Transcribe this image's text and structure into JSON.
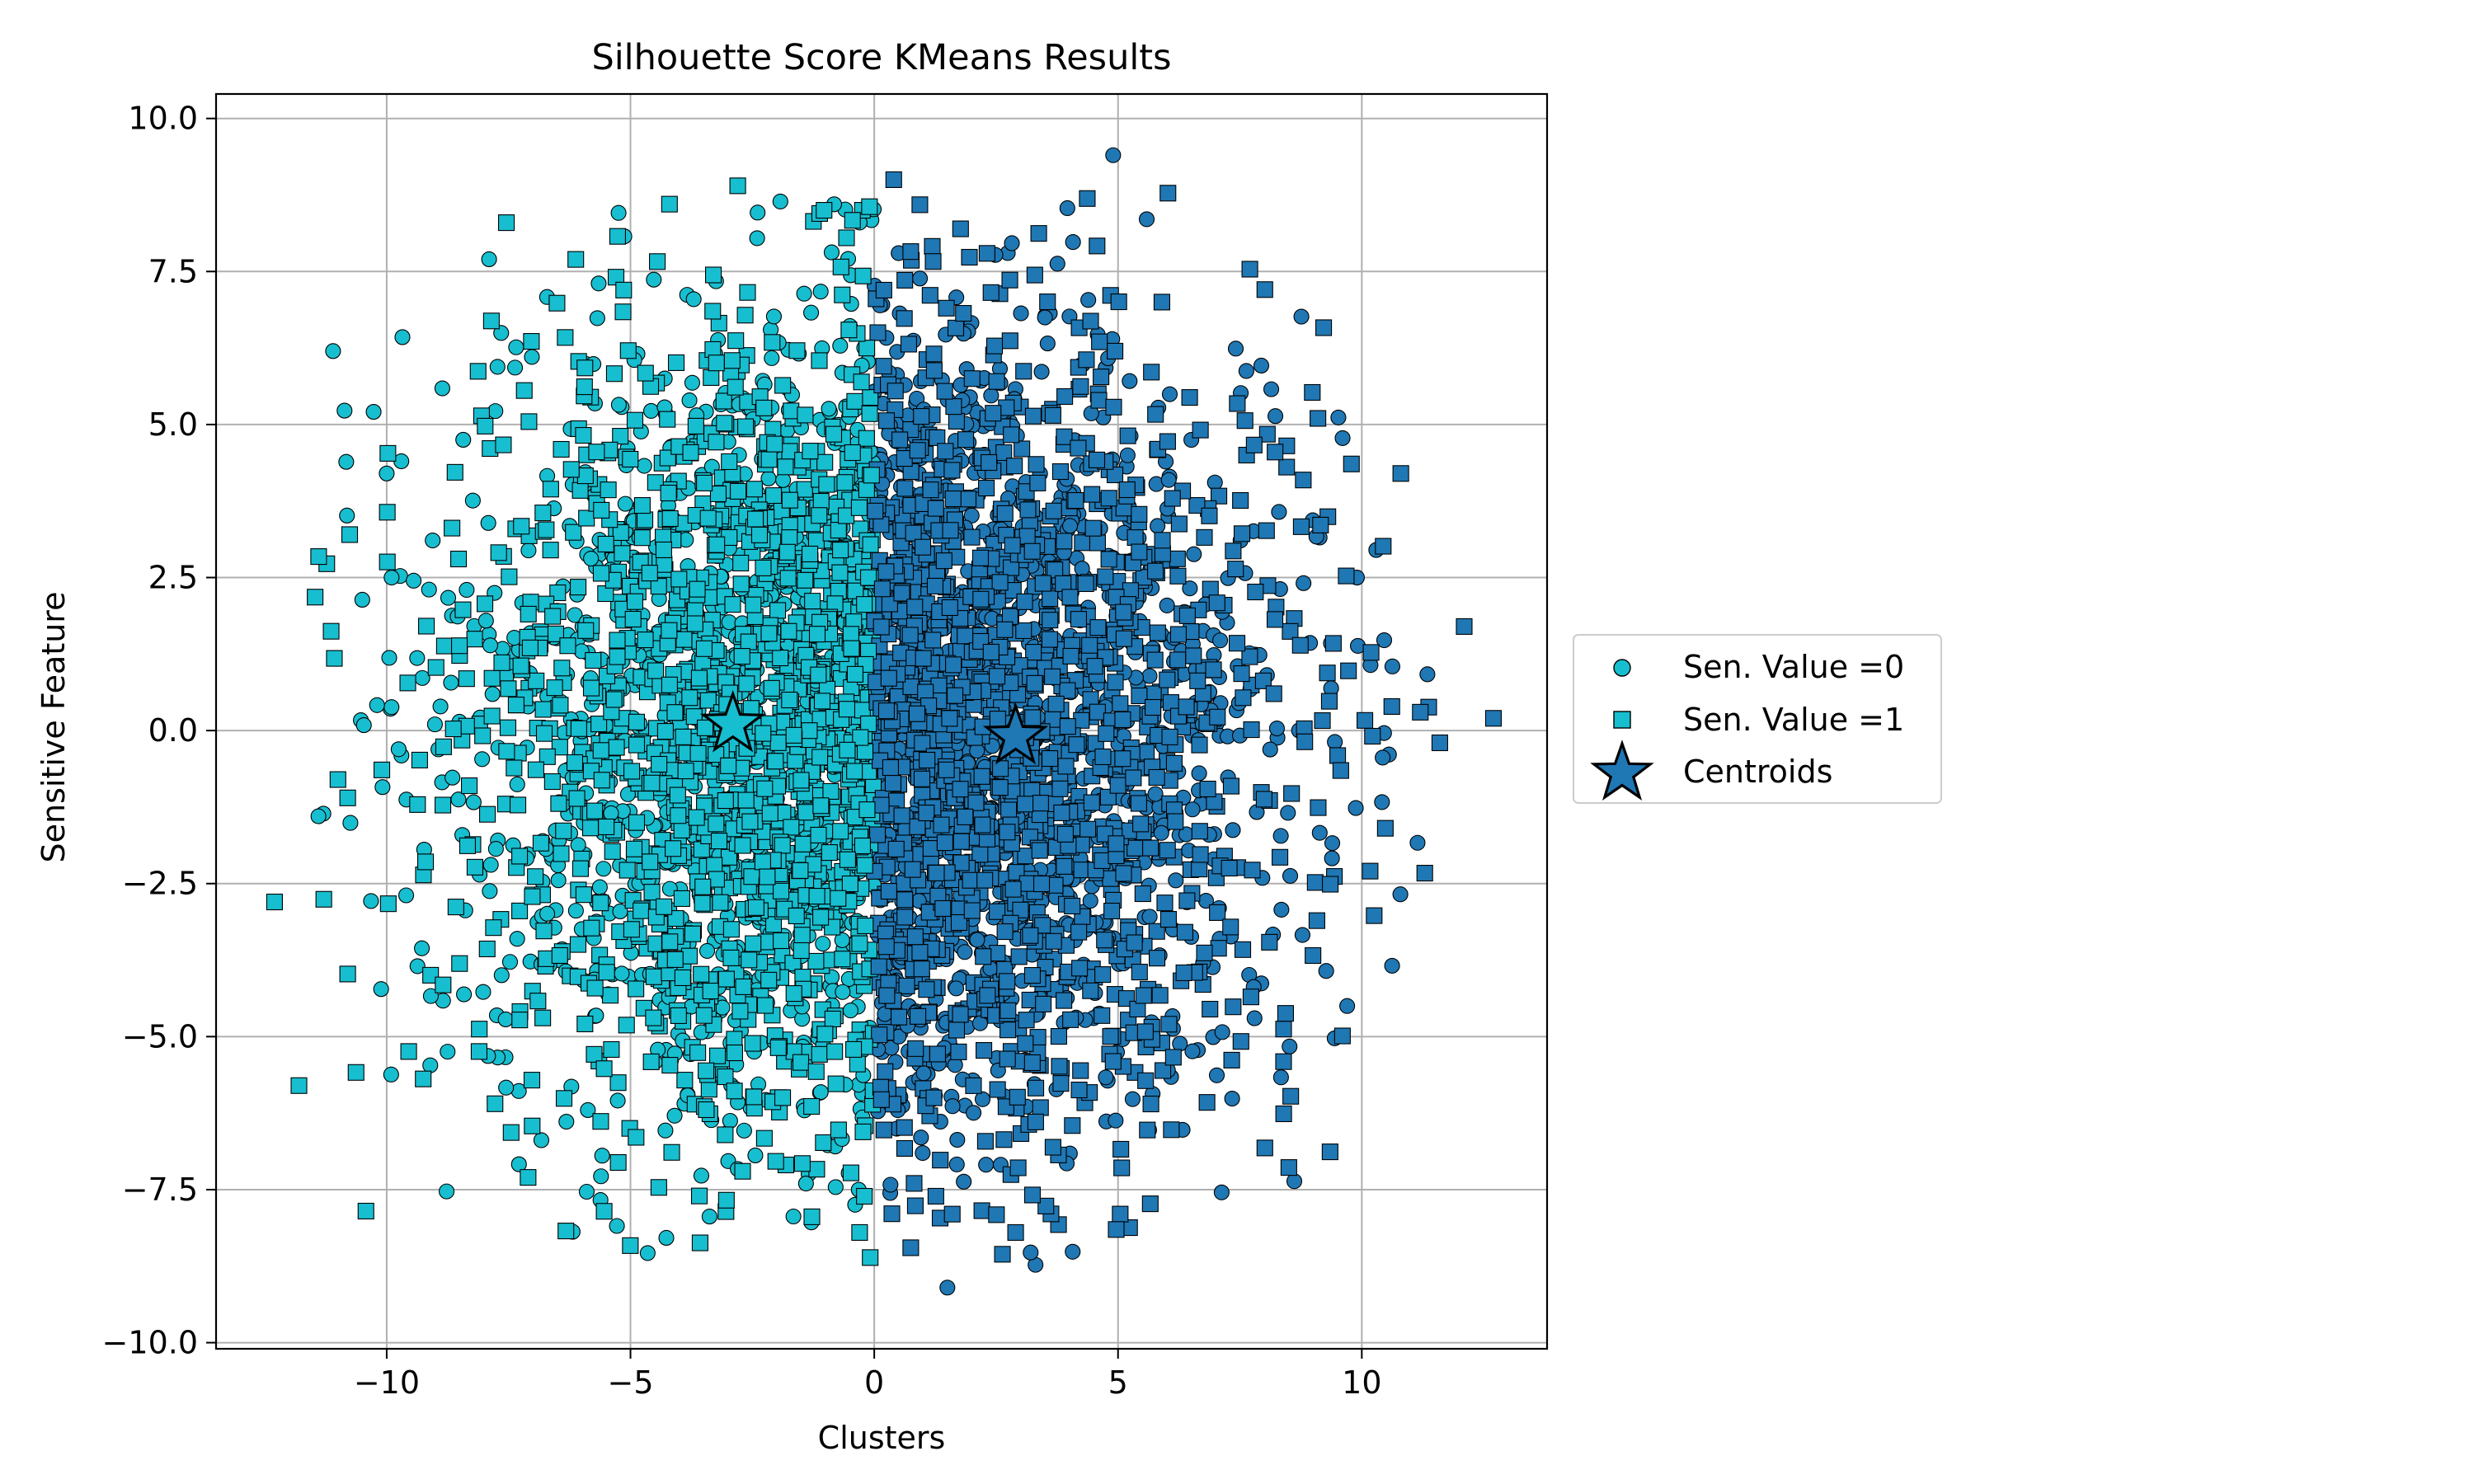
{
  "chart_data": {
    "type": "scatter",
    "title": "Silhouette Score KMeans Results",
    "xlabel": "Clusters",
    "ylabel": "Sensitive Feature",
    "xlim": [
      -13.5,
      13.8
    ],
    "ylim": [
      -10.1,
      10.4
    ],
    "x_ticks": [
      -10,
      -5,
      0,
      5,
      10
    ],
    "y_ticks": [
      -10.0,
      -7.5,
      -5.0,
      -2.5,
      0.0,
      2.5,
      5.0,
      7.5,
      10.0
    ],
    "x_tick_labels": [
      "−10",
      "−5",
      "0",
      "5",
      "10"
    ],
    "y_tick_labels": [
      "−10.0",
      "−7.5",
      "−5.0",
      "−2.5",
      "0.0",
      "2.5",
      "5.0",
      "7.5",
      "10.0"
    ],
    "grid": true,
    "legend_position": "right, outside plot",
    "cluster_colors": [
      "#17becf",
      "#1f77b4"
    ],
    "cluster_split_x": 0,
    "legend": [
      {
        "label": "Sen. Value =0",
        "marker": "circle",
        "color": "#17becf"
      },
      {
        "label": "Sen. Value =1",
        "marker": "square",
        "color": "#17becf"
      },
      {
        "label": "Centroids",
        "marker": "star",
        "color": "#1f77b4"
      }
    ],
    "centroids": [
      {
        "x": -2.9,
        "y": 0.1,
        "color": "#17becf"
      },
      {
        "x": 2.9,
        "y": -0.1,
        "color": "#1f77b4"
      }
    ],
    "distribution": {
      "x_spread": 4.0,
      "y_spread": 3.3,
      "points_per_group": 2600
    },
    "series": [
      {
        "name": "Sen. Value =0",
        "marker": "circle",
        "points": [
          {
            "x": -11.1,
            "y": 6.2
          },
          {
            "x": -7.9,
            "y": 7.7
          },
          {
            "x": 4.9,
            "y": 9.4
          },
          {
            "x": 1.5,
            "y": -9.1
          },
          {
            "x": -9.7,
            "y": 4.4
          },
          {
            "x": -10.0,
            "y": 4.2
          },
          {
            "x": 9.9,
            "y": 2.5
          },
          {
            "x": -1.4,
            "y": -7.4
          },
          {
            "x": 0.5,
            "y": 7.8
          },
          {
            "x": -0.3,
            "y": 8.3
          },
          {
            "x": -11.4,
            "y": -1.4
          },
          {
            "x": 7.8,
            "y": -4.7
          },
          {
            "x": -9.9,
            "y": 2.5
          },
          {
            "x": 9.7,
            "y": -4.5
          }
        ]
      },
      {
        "name": "Sen. Value =1",
        "marker": "square",
        "points": [
          {
            "x": -12.3,
            "y": -2.8
          },
          {
            "x": -11.8,
            "y": -5.8
          },
          {
            "x": 12.7,
            "y": 0.2
          },
          {
            "x": 12.1,
            "y": 1.7
          },
          {
            "x": 10.8,
            "y": 4.2
          },
          {
            "x": 0.4,
            "y": 9.0
          },
          {
            "x": -2.8,
            "y": 8.9
          },
          {
            "x": -4.2,
            "y": 8.6
          },
          {
            "x": 2.9,
            "y": -8.2
          },
          {
            "x": -0.3,
            "y": -8.2
          },
          {
            "x": 1.6,
            "y": -7.9
          },
          {
            "x": 5.9,
            "y": 7.0
          },
          {
            "x": 9.1,
            "y": 5.1
          },
          {
            "x": -7.1,
            "y": -7.3
          },
          {
            "x": -2.7,
            "y": -7.2
          },
          {
            "x": -11.0,
            "y": -0.8
          },
          {
            "x": 11.6,
            "y": -0.2
          },
          {
            "x": 11.2,
            "y": 0.3
          },
          {
            "x": -10.8,
            "y": -1.1
          }
        ]
      }
    ]
  }
}
